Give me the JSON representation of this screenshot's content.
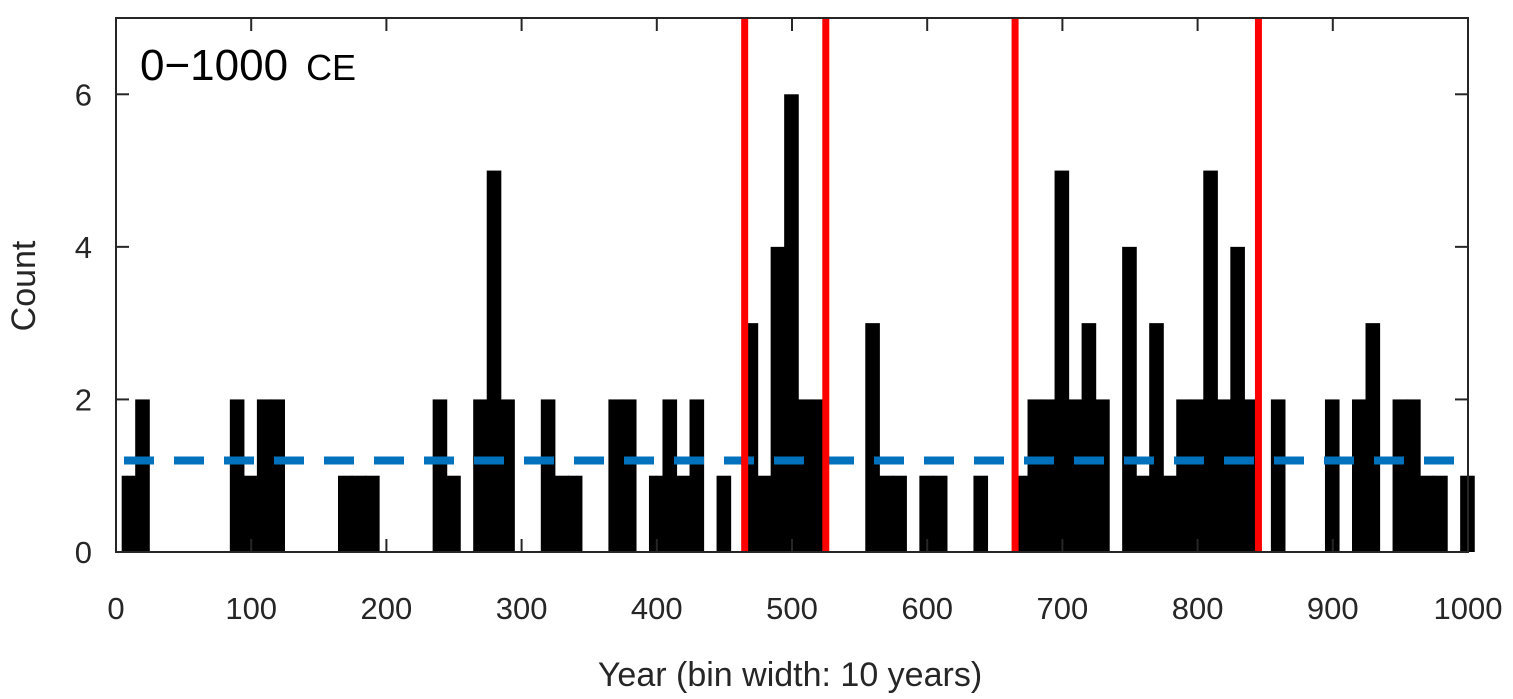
{
  "chart_data": {
    "type": "bar",
    "annotation": {
      "main": "0−1000",
      "sub": "CE"
    },
    "xlabel": "Year (bin width: 10 years)",
    "ylabel": "Count",
    "xlim": [
      0,
      1000
    ],
    "ylim": [
      0,
      7
    ],
    "bin_width": 10,
    "xticks": [
      0,
      100,
      200,
      300,
      400,
      500,
      600,
      700,
      800,
      900,
      1000
    ],
    "yticks": [
      0,
      2,
      4,
      6
    ],
    "bins": [
      {
        "x": 10,
        "y": 1
      },
      {
        "x": 20,
        "y": 2
      },
      {
        "x": 90,
        "y": 2
      },
      {
        "x": 100,
        "y": 1
      },
      {
        "x": 110,
        "y": 2
      },
      {
        "x": 120,
        "y": 2
      },
      {
        "x": 170,
        "y": 1
      },
      {
        "x": 180,
        "y": 1
      },
      {
        "x": 190,
        "y": 1
      },
      {
        "x": 240,
        "y": 2
      },
      {
        "x": 250,
        "y": 1
      },
      {
        "x": 270,
        "y": 2
      },
      {
        "x": 280,
        "y": 5
      },
      {
        "x": 290,
        "y": 2
      },
      {
        "x": 320,
        "y": 2
      },
      {
        "x": 330,
        "y": 1
      },
      {
        "x": 340,
        "y": 1
      },
      {
        "x": 370,
        "y": 2
      },
      {
        "x": 380,
        "y": 2
      },
      {
        "x": 400,
        "y": 1
      },
      {
        "x": 410,
        "y": 2
      },
      {
        "x": 420,
        "y": 1
      },
      {
        "x": 430,
        "y": 2
      },
      {
        "x": 450,
        "y": 1
      },
      {
        "x": 470,
        "y": 3
      },
      {
        "x": 480,
        "y": 1
      },
      {
        "x": 490,
        "y": 4
      },
      {
        "x": 500,
        "y": 6
      },
      {
        "x": 510,
        "y": 2
      },
      {
        "x": 520,
        "y": 2
      },
      {
        "x": 560,
        "y": 3
      },
      {
        "x": 570,
        "y": 1
      },
      {
        "x": 580,
        "y": 1
      },
      {
        "x": 600,
        "y": 1
      },
      {
        "x": 610,
        "y": 1
      },
      {
        "x": 640,
        "y": 1
      },
      {
        "x": 670,
        "y": 1
      },
      {
        "x": 680,
        "y": 2
      },
      {
        "x": 690,
        "y": 2
      },
      {
        "x": 700,
        "y": 5
      },
      {
        "x": 710,
        "y": 2
      },
      {
        "x": 720,
        "y": 3
      },
      {
        "x": 730,
        "y": 2
      },
      {
        "x": 750,
        "y": 4
      },
      {
        "x": 760,
        "y": 1
      },
      {
        "x": 770,
        "y": 3
      },
      {
        "x": 780,
        "y": 1
      },
      {
        "x": 790,
        "y": 2
      },
      {
        "x": 800,
        "y": 2
      },
      {
        "x": 810,
        "y": 5
      },
      {
        "x": 820,
        "y": 2
      },
      {
        "x": 830,
        "y": 4
      },
      {
        "x": 840,
        "y": 2
      },
      {
        "x": 860,
        "y": 2
      },
      {
        "x": 900,
        "y": 2
      },
      {
        "x": 920,
        "y": 2
      },
      {
        "x": 930,
        "y": 3
      },
      {
        "x": 950,
        "y": 2
      },
      {
        "x": 960,
        "y": 2
      },
      {
        "x": 970,
        "y": 1
      },
      {
        "x": 980,
        "y": 1
      },
      {
        "x": 1000,
        "y": 1
      }
    ],
    "mean_line": {
      "y": 1.2,
      "color": "#0072BD",
      "style": "dashed"
    },
    "vertical_markers": {
      "x": [
        465,
        525,
        665,
        845
      ],
      "color": "#FF0000"
    },
    "bar_color": "#000000",
    "grid": false
  }
}
